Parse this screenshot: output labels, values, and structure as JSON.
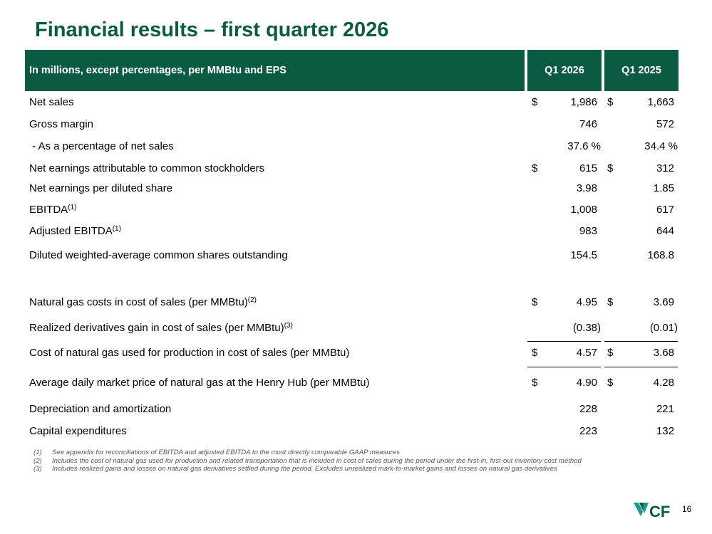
{
  "title": "Financial results – first quarter 2026",
  "table": {
    "header": {
      "label": "In millions, except percentages, per MMBtu and EPS",
      "col1": "Q1 2026",
      "col2": "Q1 2025"
    },
    "rows": [
      {
        "label": "Net sales",
        "sup": "",
        "d1": "$",
        "v1": "1,986",
        "d2": "$",
        "v2": "1,663"
      },
      {
        "label": "Gross margin",
        "sup": "",
        "d1": "",
        "v1": "746",
        "d2": "",
        "v2": "572"
      },
      {
        "label": " - As a percentage of net sales",
        "sup": "",
        "d1": "",
        "v1": "37.6 %",
        "d2": "",
        "v2": "34.4 %"
      },
      {
        "label": "Net earnings attributable to common stockholders",
        "sup": "",
        "d1": "$",
        "v1": "615",
        "d2": "$",
        "v2": "312"
      },
      {
        "label": "Net earnings per diluted share",
        "sup": "",
        "d1": "",
        "v1": "3.98",
        "d2": "",
        "v2": "1.85"
      },
      {
        "label": "EBITDA",
        "sup": "(1)",
        "d1": "",
        "v1": "1,008",
        "d2": "",
        "v2": "617"
      },
      {
        "label": "Adjusted EBITDA",
        "sup": "(1)",
        "d1": "",
        "v1": "983",
        "d2": "",
        "v2": "644"
      },
      {
        "label": "Diluted weighted-average common shares outstanding",
        "sup": "",
        "d1": "",
        "v1": "154.5",
        "d2": "",
        "v2": "168.8"
      },
      {
        "label": "Natural gas costs in cost of sales (per MMBtu)",
        "sup": "(2)",
        "d1": "$",
        "v1": "4.95",
        "d2": "$",
        "v2": "3.69"
      },
      {
        "label": "Realized derivatives gain in cost of sales (per MMBtu)",
        "sup": "(3)",
        "d1": "",
        "v1": "(0.38)",
        "d2": "",
        "v2": "(0.01)"
      },
      {
        "label": "Cost of natural gas used for production in cost of sales (per MMBtu)",
        "sup": "",
        "d1": "$",
        "v1": "4.57",
        "d2": "$",
        "v2": "3.68"
      },
      {
        "label": "Average daily market price of natural gas at the Henry Hub (per MMBtu)",
        "sup": "",
        "d1": "$",
        "v1": "4.90",
        "d2": "$",
        "v2": "4.28"
      },
      {
        "label": "Depreciation and amortization",
        "sup": "",
        "d1": "",
        "v1": "228",
        "d2": "",
        "v2": "221"
      },
      {
        "label": "Capital expenditures",
        "sup": "",
        "d1": "",
        "v1": "223",
        "d2": "",
        "v2": "132"
      }
    ]
  },
  "footnotes": [
    {
      "num": "(1)",
      "text": "See appendix for reconciliations of EBITDA and adjusted EBITDA to the most directly comparable GAAP measures"
    },
    {
      "num": "(2)",
      "text": "Includes the cost of natural gas used for production and related transportation that is included in cost of sales during the period under the first-in, first-out inventory cost method"
    },
    {
      "num": "(3)",
      "text": "Includes realized gains and losses on natural gas derivatives settled during the period. Excludes unrealized mark-to-market gains and losses on natural gas derivatives"
    }
  ],
  "logo_text": "CF",
  "page_number": "16",
  "colors": {
    "brand_green": "#0b5a44",
    "logo_teal": "#1a9c8c"
  }
}
